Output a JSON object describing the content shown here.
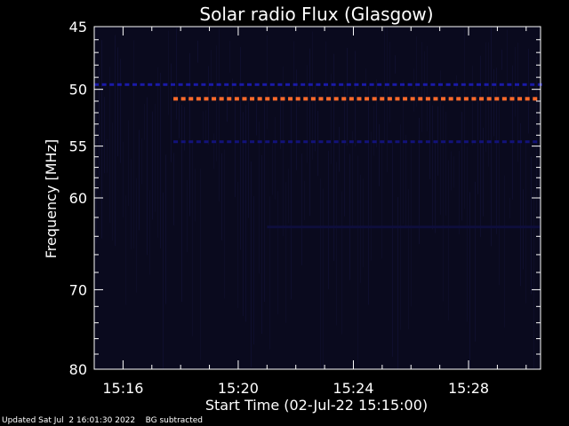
{
  "chart_data": {
    "type": "heatmap",
    "title": "Solar radio Flux (Glasgow)",
    "xlabel": "Start Time (02-Jul-22 15:15:00)",
    "ylabel": "Frequency [MHz]",
    "x_range": [
      "15:15:00",
      "15:30:30"
    ],
    "y_range": [
      45,
      80
    ],
    "y_scale": "log",
    "y_axis_inverted": true,
    "x_ticks": [
      "15:16",
      "15:20",
      "15:24",
      "15:28"
    ],
    "y_ticks": [
      45,
      50,
      55,
      60,
      70,
      80
    ],
    "grid": false,
    "background": "#0a0a1e",
    "bands": [
      {
        "freq_mhz": 49.6,
        "start": "15:15:00",
        "end": "15:30:30",
        "color": "#1a1aa8",
        "pattern": "dashed"
      },
      {
        "freq_mhz": 50.8,
        "start": "15:17:45",
        "end": "15:30:30",
        "color": "#ff6a2a",
        "pattern": "dashed"
      },
      {
        "freq_mhz": 54.6,
        "start": "15:17:45",
        "end": "15:30:30",
        "color": "#12127a",
        "pattern": "dashed"
      },
      {
        "freq_mhz": 63.0,
        "start": "15:21:00",
        "end": "15:30:30",
        "color": "#0e0e3c",
        "pattern": "solid"
      }
    ]
  },
  "footer": {
    "updated": "Updated Sat Jul  2 16:01:30 2022",
    "note": "BG subtracted"
  }
}
